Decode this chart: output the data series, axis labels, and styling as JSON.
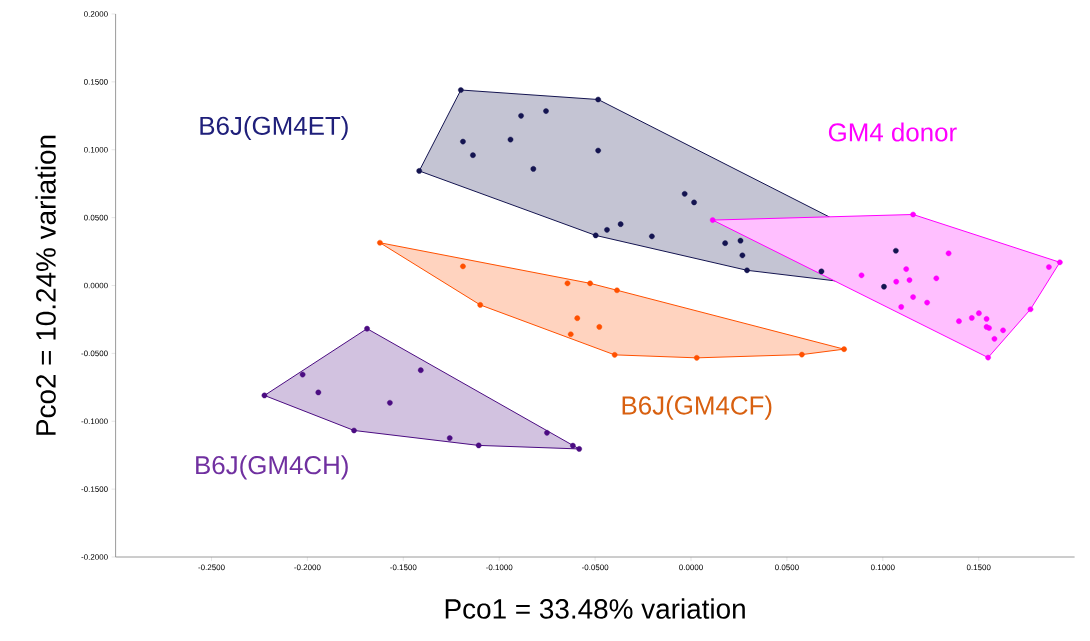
{
  "chart_data": {
    "type": "scatter",
    "xlabel": "Pco1 = 33.48% variation",
    "ylabel": "Pco2 = 10.24% variation",
    "xlim": [
      -0.3,
      0.2
    ],
    "ylim": [
      -0.2,
      0.2
    ],
    "xticks": [
      {
        "value": -0.25,
        "label": "-0.2500"
      },
      {
        "value": -0.2,
        "label": "-0.2000"
      },
      {
        "value": -0.15,
        "label": "-0.1500"
      },
      {
        "value": -0.1,
        "label": "-0.1000"
      },
      {
        "value": -0.05,
        "label": "-0.0500"
      },
      {
        "value": 0,
        "label": "0.0000"
      },
      {
        "value": 0.05,
        "label": "0.0500"
      },
      {
        "value": 0.1,
        "label": "0.1000"
      },
      {
        "value": 0.15,
        "label": "0.1500"
      }
    ],
    "yticks": [
      {
        "value": -0.2,
        "label": "-0.2000"
      },
      {
        "value": -0.15,
        "label": "-0.1500"
      },
      {
        "value": -0.1,
        "label": "-0.1000"
      },
      {
        "value": -0.05,
        "label": "-0.0500"
      },
      {
        "value": 0,
        "label": "0.0000"
      },
      {
        "value": 0.05,
        "label": "0.0500"
      },
      {
        "value": 0.1,
        "label": "0.1000"
      },
      {
        "value": 0.15,
        "label": "0.1500"
      },
      {
        "value": 0.2,
        "label": "0.2000"
      }
    ],
    "grid": false,
    "legend": false,
    "marker": "circle",
    "series": [
      {
        "name": "B6J(GM4ET)",
        "color": "#141450",
        "x": [
          -0.12,
          -0.0484,
          -0.0886,
          -0.0756,
          -0.1189,
          -0.0941,
          -0.1137,
          -0.0484,
          -0.1417,
          -0.0822,
          -0.0033,
          0.0016,
          -0.0367,
          -0.0438,
          -0.0497,
          -0.0204,
          0.0178,
          0.0258,
          0.0268,
          0.0292,
          0.1068,
          0.1006,
          0.068
        ],
        "values": [
          0.144,
          0.137,
          0.125,
          0.1285,
          0.106,
          0.1075,
          0.096,
          0.0994,
          0.0844,
          0.0859,
          0.0675,
          0.0612,
          0.0452,
          0.041,
          0.0369,
          0.0362,
          0.0312,
          0.033,
          0.0222,
          0.0112,
          0.0256,
          -0.0009,
          0.0104
        ]
      },
      {
        "name": "GM4 donor",
        "color": "#ff00ff",
        "x": [
          0.0113,
          0.1158,
          0.1923,
          0.1866,
          0.1343,
          0.0889,
          0.1122,
          0.107,
          0.1139,
          0.1279,
          0.1158,
          0.1231,
          0.1096,
          0.177,
          0.1397,
          0.1464,
          0.1501,
          0.1541,
          0.1541,
          0.1554,
          0.1627,
          0.1582,
          0.1549
        ],
        "values": [
          0.0482,
          0.0523,
          0.0171,
          0.0136,
          0.0237,
          0.0075,
          0.0121,
          0.0028,
          0.004,
          0.0053,
          -0.0085,
          -0.0126,
          -0.0158,
          -0.0175,
          -0.0263,
          -0.0239,
          -0.0204,
          -0.0246,
          -0.0305,
          -0.0313,
          -0.033,
          -0.0393,
          -0.0531
        ]
      },
      {
        "name": "B6J(GM4CF)",
        "color": "#ff5000",
        "x": [
          -0.1622,
          -0.1189,
          -0.1099,
          -0.0644,
          -0.0526,
          -0.0386,
          -0.0593,
          -0.0478,
          -0.0627,
          -0.0398,
          0.003,
          0.0578,
          0.0798
        ],
        "values": [
          0.0315,
          0.0141,
          -0.0143,
          0.0016,
          0.0016,
          -0.0035,
          -0.0241,
          -0.0305,
          -0.0359,
          -0.0511,
          -0.0533,
          -0.0509,
          -0.0469
        ]
      },
      {
        "name": "B6J(GM4CH)",
        "color": "#4b0c82",
        "x": [
          -0.1689,
          -0.2025,
          -0.2224,
          -0.1943,
          -0.1409,
          -0.157,
          -0.1757,
          -0.1258,
          -0.1107,
          -0.0751,
          -0.0616,
          -0.0583
        ],
        "values": [
          -0.0318,
          -0.0656,
          -0.081,
          -0.0788,
          -0.0624,
          -0.0864,
          -0.1068,
          -0.1124,
          -0.1178,
          -0.1085,
          -0.118,
          -0.1204
        ]
      }
    ]
  }
}
